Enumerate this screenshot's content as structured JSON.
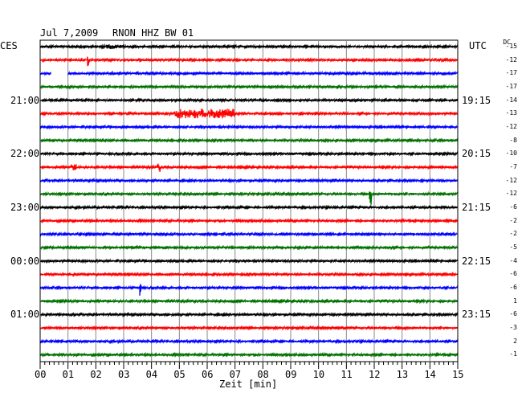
{
  "header": {
    "date": "Jul 7,2009",
    "station": "RNON HHZ BW 01",
    "left_zone": "CES",
    "right_zone": "UTC",
    "dc_label": "DC"
  },
  "chart_data": {
    "type": "line",
    "title": "Jul 7,2009   RNON HHZ BW 01",
    "xlabel": "Zeit [min]",
    "xlim": [
      0,
      15
    ],
    "x_ticks": [
      "00",
      "01",
      "02",
      "03",
      "04",
      "05",
      "06",
      "07",
      "08",
      "09",
      "10",
      "11",
      "12",
      "13",
      "14",
      "15"
    ],
    "trace_colors": [
      "#000000",
      "#ff0000",
      "#0000ff",
      "#007000"
    ],
    "left_time_labels": [
      {
        "trace": 4,
        "text": "21:00"
      },
      {
        "trace": 8,
        "text": "22:00"
      },
      {
        "trace": 12,
        "text": "23:00"
      },
      {
        "trace": 16,
        "text": "00:00"
      },
      {
        "trace": 20,
        "text": "01:00"
      }
    ],
    "right_time_labels": [
      {
        "trace": 4,
        "text": "19:15"
      },
      {
        "trace": 8,
        "text": "20:15"
      },
      {
        "trace": 12,
        "text": "21:15"
      },
      {
        "trace": 16,
        "text": "22:15"
      },
      {
        "trace": 20,
        "text": "23:15"
      }
    ],
    "dc_values": [
      "-15",
      "-12",
      "-17",
      "-17",
      "-14",
      "-13",
      "-12",
      "-8",
      "-10",
      "-7",
      "-12",
      "-12",
      "-6",
      "-2",
      "-2",
      "-5",
      "-4",
      "-6",
      "-6",
      "1",
      "-6",
      "-3",
      "2",
      "-1"
    ],
    "events": [
      {
        "trace": 0,
        "start_min": 2.2,
        "end_min": 3.0,
        "amp": 3
      },
      {
        "trace": 1,
        "start_min": 1.7,
        "end_min": 1.75,
        "amp": 10
      },
      {
        "trace": 2,
        "start_min": 0.4,
        "end_min": 1.0,
        "amp": 0
      },
      {
        "trace": 5,
        "start_min": 4.8,
        "end_min": 7.0,
        "amp": 6
      },
      {
        "trace": 9,
        "start_min": 1.1,
        "end_min": 1.3,
        "amp": 4
      },
      {
        "trace": 9,
        "start_min": 4.2,
        "end_min": 4.3,
        "amp": 7
      },
      {
        "trace": 11,
        "start_min": 11.8,
        "end_min": 11.9,
        "amp": 14
      },
      {
        "trace": 18,
        "start_min": 3.55,
        "end_min": 3.65,
        "amp": 14
      }
    ]
  }
}
